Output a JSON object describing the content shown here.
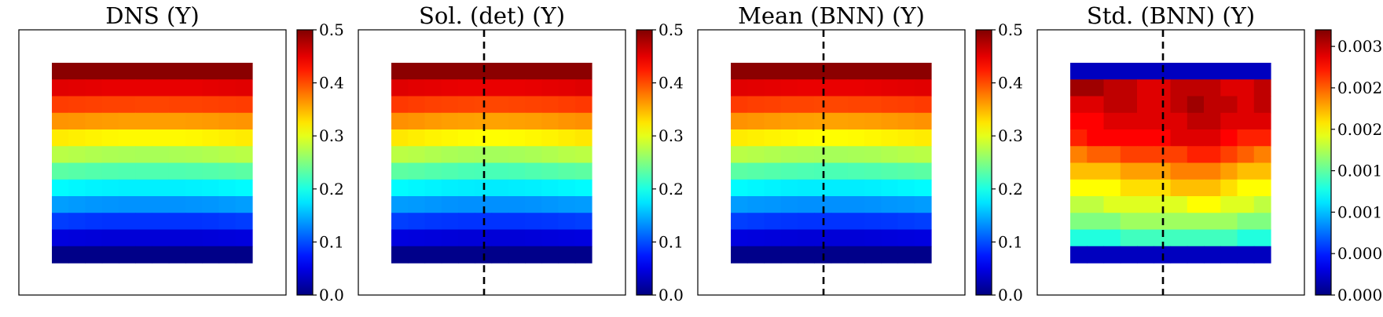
{
  "chart_data": [
    {
      "type": "heatmap",
      "title": "DNS (Y)",
      "colormap": "jet",
      "grid": false,
      "dashed_vertical_line": false,
      "colorbar": {
        "range": [
          0,
          0.5
        ],
        "ticks": [
          "0.0",
          "0.1",
          "0.2",
          "0.3",
          "0.4",
          "0.5"
        ]
      },
      "rows": [
        [
          0.495,
          0.495,
          0.495,
          0.495,
          0.495,
          0.495,
          0.495,
          0.495,
          0.495,
          0.495,
          0.495,
          0.495
        ],
        [
          0.452,
          0.451,
          0.45,
          0.449,
          0.449,
          0.449,
          0.449,
          0.449,
          0.449,
          0.45,
          0.451,
          0.452
        ],
        [
          0.408,
          0.407,
          0.406,
          0.405,
          0.405,
          0.404,
          0.404,
          0.405,
          0.405,
          0.406,
          0.407,
          0.408
        ],
        [
          0.365,
          0.364,
          0.362,
          0.361,
          0.36,
          0.36,
          0.36,
          0.36,
          0.361,
          0.362,
          0.364,
          0.365
        ],
        [
          0.322,
          0.32,
          0.318,
          0.316,
          0.315,
          0.315,
          0.315,
          0.315,
          0.316,
          0.318,
          0.32,
          0.322
        ],
        [
          0.278,
          0.276,
          0.274,
          0.272,
          0.271,
          0.27,
          0.27,
          0.271,
          0.272,
          0.274,
          0.276,
          0.278
        ],
        [
          0.232,
          0.23,
          0.228,
          0.227,
          0.226,
          0.226,
          0.226,
          0.226,
          0.227,
          0.228,
          0.23,
          0.232
        ],
        [
          0.186,
          0.184,
          0.182,
          0.181,
          0.18,
          0.18,
          0.18,
          0.18,
          0.181,
          0.182,
          0.184,
          0.186
        ],
        [
          0.14,
          0.138,
          0.136,
          0.135,
          0.134,
          0.134,
          0.134,
          0.134,
          0.135,
          0.136,
          0.138,
          0.14
        ],
        [
          0.092,
          0.09,
          0.088,
          0.087,
          0.087,
          0.087,
          0.087,
          0.087,
          0.087,
          0.088,
          0.09,
          0.092
        ],
        [
          0.046,
          0.045,
          0.044,
          0.043,
          0.043,
          0.043,
          0.043,
          0.043,
          0.043,
          0.044,
          0.045,
          0.046
        ],
        [
          0.004,
          0.004,
          0.004,
          0.004,
          0.004,
          0.004,
          0.004,
          0.004,
          0.004,
          0.004,
          0.004,
          0.004
        ]
      ]
    },
    {
      "type": "heatmap",
      "title": "Sol. (det) (Y)",
      "colormap": "jet",
      "grid": false,
      "dashed_vertical_line": true,
      "colorbar": {
        "range": [
          0,
          0.5
        ],
        "ticks": [
          "0.0",
          "0.1",
          "0.2",
          "0.3",
          "0.4",
          "0.5"
        ]
      },
      "rows": [
        [
          0.494,
          0.494,
          0.494,
          0.494,
          0.494,
          0.494,
          0.494,
          0.494,
          0.494,
          0.494,
          0.494,
          0.494
        ],
        [
          0.453,
          0.451,
          0.45,
          0.449,
          0.448,
          0.448,
          0.448,
          0.448,
          0.449,
          0.45,
          0.451,
          0.453
        ],
        [
          0.41,
          0.408,
          0.406,
          0.405,
          0.404,
          0.403,
          0.403,
          0.404,
          0.405,
          0.406,
          0.408,
          0.41
        ],
        [
          0.367,
          0.365,
          0.362,
          0.36,
          0.359,
          0.358,
          0.358,
          0.359,
          0.36,
          0.362,
          0.365,
          0.367
        ],
        [
          0.324,
          0.321,
          0.318,
          0.316,
          0.314,
          0.313,
          0.313,
          0.314,
          0.316,
          0.318,
          0.321,
          0.324
        ],
        [
          0.279,
          0.277,
          0.274,
          0.271,
          0.269,
          0.268,
          0.268,
          0.269,
          0.271,
          0.274,
          0.277,
          0.279
        ],
        [
          0.233,
          0.231,
          0.228,
          0.226,
          0.224,
          0.223,
          0.223,
          0.224,
          0.226,
          0.228,
          0.231,
          0.233
        ],
        [
          0.186,
          0.184,
          0.182,
          0.18,
          0.179,
          0.178,
          0.178,
          0.179,
          0.18,
          0.182,
          0.184,
          0.186
        ],
        [
          0.139,
          0.138,
          0.136,
          0.134,
          0.133,
          0.133,
          0.133,
          0.133,
          0.134,
          0.136,
          0.138,
          0.139
        ],
        [
          0.093,
          0.091,
          0.089,
          0.088,
          0.087,
          0.087,
          0.087,
          0.087,
          0.088,
          0.089,
          0.091,
          0.093
        ],
        [
          0.047,
          0.046,
          0.045,
          0.044,
          0.043,
          0.043,
          0.043,
          0.043,
          0.044,
          0.045,
          0.046,
          0.047
        ],
        [
          0.005,
          0.005,
          0.005,
          0.005,
          0.005,
          0.005,
          0.005,
          0.005,
          0.005,
          0.005,
          0.005,
          0.005
        ]
      ]
    },
    {
      "type": "heatmap",
      "title": "Mean (BNN) (Y)",
      "colormap": "jet",
      "grid": false,
      "dashed_vertical_line": true,
      "colorbar": {
        "range": [
          0,
          0.5
        ],
        "ticks": [
          "0.0",
          "0.1",
          "0.2",
          "0.3",
          "0.4",
          "0.5"
        ]
      },
      "rows": [
        [
          0.494,
          0.494,
          0.494,
          0.494,
          0.494,
          0.494,
          0.494,
          0.494,
          0.494,
          0.494,
          0.494,
          0.494
        ],
        [
          0.452,
          0.451,
          0.45,
          0.449,
          0.448,
          0.448,
          0.448,
          0.448,
          0.449,
          0.45,
          0.451,
          0.452
        ],
        [
          0.409,
          0.407,
          0.406,
          0.404,
          0.404,
          0.403,
          0.403,
          0.404,
          0.404,
          0.406,
          0.407,
          0.409
        ],
        [
          0.366,
          0.364,
          0.362,
          0.36,
          0.359,
          0.358,
          0.358,
          0.359,
          0.36,
          0.362,
          0.364,
          0.366
        ],
        [
          0.322,
          0.32,
          0.318,
          0.316,
          0.314,
          0.313,
          0.313,
          0.314,
          0.316,
          0.318,
          0.32,
          0.322
        ],
        [
          0.278,
          0.276,
          0.274,
          0.271,
          0.27,
          0.269,
          0.269,
          0.27,
          0.271,
          0.274,
          0.276,
          0.278
        ],
        [
          0.232,
          0.23,
          0.228,
          0.226,
          0.225,
          0.224,
          0.224,
          0.225,
          0.226,
          0.228,
          0.23,
          0.232
        ],
        [
          0.186,
          0.184,
          0.182,
          0.18,
          0.179,
          0.179,
          0.179,
          0.179,
          0.18,
          0.182,
          0.184,
          0.186
        ],
        [
          0.139,
          0.137,
          0.136,
          0.134,
          0.133,
          0.133,
          0.133,
          0.133,
          0.134,
          0.136,
          0.137,
          0.139
        ],
        [
          0.093,
          0.091,
          0.089,
          0.088,
          0.087,
          0.087,
          0.087,
          0.087,
          0.088,
          0.089,
          0.091,
          0.093
        ],
        [
          0.047,
          0.046,
          0.045,
          0.044,
          0.043,
          0.043,
          0.043,
          0.043,
          0.044,
          0.045,
          0.046,
          0.047
        ],
        [
          0.005,
          0.005,
          0.005,
          0.005,
          0.005,
          0.005,
          0.005,
          0.005,
          0.005,
          0.005,
          0.005,
          0.005
        ]
      ]
    },
    {
      "type": "heatmap",
      "title": "Std. (BNN) (Y)",
      "colormap": "jet",
      "grid": false,
      "dashed_vertical_line": true,
      "colorbar": {
        "range": [
          0,
          0.0032
        ],
        "ticks": [
          "0.0000",
          "0.0005",
          "0.0010",
          "0.0015",
          "0.0020",
          "0.0025",
          "0.0030"
        ]
      },
      "rows": [
        [
          0.0002,
          0.0002,
          0.0002,
          0.0002,
          0.0002,
          0.0002,
          0.0002,
          0.0002,
          0.0002,
          0.0002,
          0.0002,
          0.0002
        ],
        [
          0.0031,
          0.0031,
          0.003,
          0.003,
          0.0029,
          0.0029,
          0.003,
          0.003,
          0.003,
          0.0029,
          0.0029,
          0.003
        ],
        [
          0.0029,
          0.0029,
          0.003,
          0.003,
          0.0029,
          0.0029,
          0.003,
          0.0031,
          0.003,
          0.003,
          0.0029,
          0.003
        ],
        [
          0.0028,
          0.0028,
          0.0029,
          0.0029,
          0.0029,
          0.0029,
          0.0029,
          0.003,
          0.003,
          0.0029,
          0.0029,
          0.0029
        ],
        [
          0.0027,
          0.0028,
          0.0028,
          0.0028,
          0.0028,
          0.0028,
          0.0029,
          0.0029,
          0.0029,
          0.0028,
          0.0027,
          0.0027
        ],
        [
          0.0024,
          0.0025,
          0.0025,
          0.0026,
          0.0026,
          0.0026,
          0.0026,
          0.0027,
          0.0027,
          0.0026,
          0.0025,
          0.0024
        ],
        [
          0.0022,
          0.0022,
          0.0022,
          0.0023,
          0.0023,
          0.0023,
          0.0024,
          0.0024,
          0.0024,
          0.0023,
          0.0022,
          0.0022
        ],
        [
          0.002,
          0.002,
          0.002,
          0.0021,
          0.0021,
          0.0021,
          0.0022,
          0.0022,
          0.0022,
          0.0021,
          0.002,
          0.002
        ],
        [
          0.0018,
          0.0018,
          0.0019,
          0.0019,
          0.0019,
          0.0019,
          0.0019,
          0.002,
          0.002,
          0.0019,
          0.0019,
          0.0018
        ],
        [
          0.0016,
          0.0016,
          0.0016,
          0.0017,
          0.0017,
          0.0017,
          0.0017,
          0.0017,
          0.0017,
          0.0017,
          0.0016,
          0.0016
        ],
        [
          0.0013,
          0.0013,
          0.0013,
          0.0014,
          0.0014,
          0.0014,
          0.0014,
          0.0014,
          0.0014,
          0.0014,
          0.0013,
          0.0013
        ],
        [
          0.0002,
          0.0002,
          0.0002,
          0.0002,
          0.0002,
          0.0002,
          0.0002,
          0.0002,
          0.0002,
          0.0002,
          0.0002,
          0.0002
        ]
      ]
    }
  ]
}
